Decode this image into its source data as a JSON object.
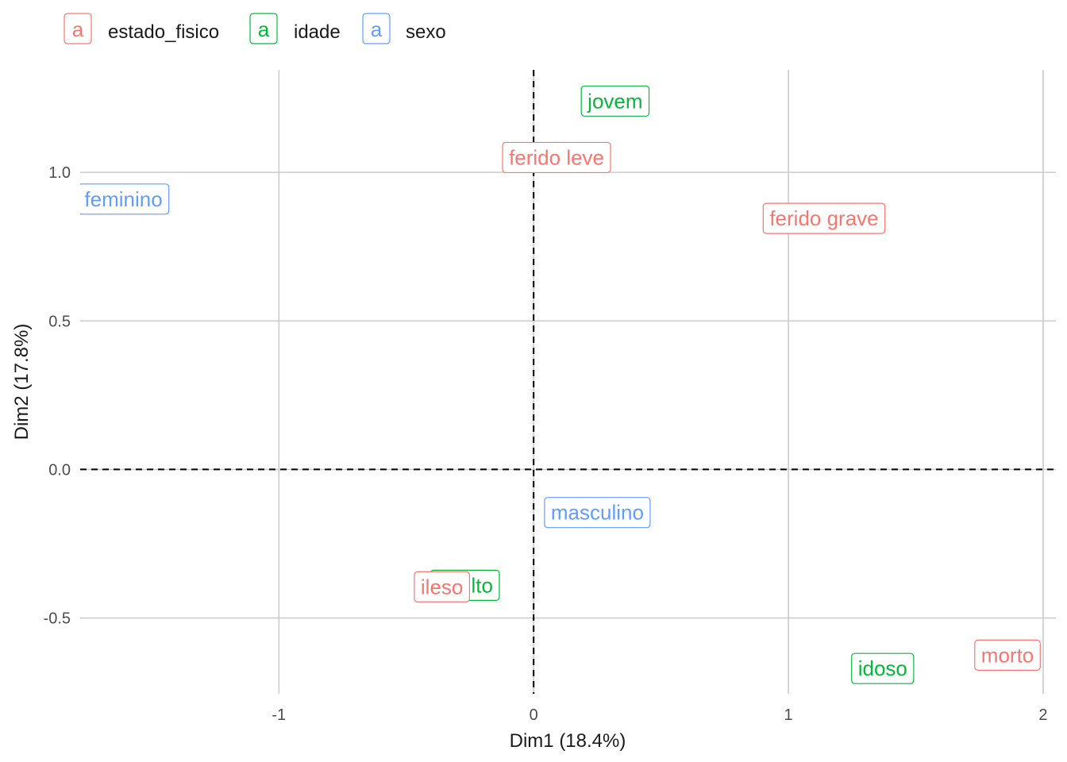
{
  "chart_data": {
    "type": "scatter",
    "title": "",
    "xlabel": "Dim1 (18.4%)",
    "ylabel": "Dim2 (17.8%)",
    "xlim": [
      -1.78,
      2.05
    ],
    "ylim": [
      -0.755,
      1.345
    ],
    "x_ticks": [
      -1,
      0,
      1,
      2
    ],
    "x_tick_labels": [
      "-1",
      "0",
      "1",
      "2"
    ],
    "y_ticks": [
      -0.5,
      0.0,
      0.5,
      1.0
    ],
    "y_tick_labels": [
      "-0.5",
      "0.0",
      "0.5",
      "1.0"
    ],
    "grid": true,
    "reference_lines": {
      "x": 0,
      "y": 0,
      "style": "dashed"
    },
    "legend": {
      "position": "top-left",
      "symbol": "a",
      "entries": [
        {
          "name": "estado_fisico",
          "color": "#F8766D"
        },
        {
          "name": "idade",
          "color": "#00BA38"
        },
        {
          "name": "sexo",
          "color": "#619CFF"
        }
      ]
    },
    "series": [
      {
        "name": "idade",
        "color": "#00BA38",
        "points": [
          {
            "label": "jovem",
            "x": 0.32,
            "y": 1.24
          },
          {
            "label": "adulto",
            "x": -0.27,
            "y": -0.39
          },
          {
            "label": "idoso",
            "x": 1.37,
            "y": -0.67
          }
        ]
      },
      {
        "name": "sexo",
        "color": "#619CFF",
        "points": [
          {
            "label": "feminino",
            "x": -1.61,
            "y": 0.91
          },
          {
            "label": "masculino",
            "x": 0.25,
            "y": -0.145
          }
        ]
      },
      {
        "name": "estado_fisico",
        "color": "#F8766D",
        "points": [
          {
            "label": "ferido leve",
            "x": 0.09,
            "y": 1.05
          },
          {
            "label": "ferido grave",
            "x": 1.14,
            "y": 0.845
          },
          {
            "label": "ileso",
            "x": -0.36,
            "y": -0.395
          },
          {
            "label": "morto",
            "x": 1.86,
            "y": -0.625
          }
        ]
      }
    ]
  }
}
